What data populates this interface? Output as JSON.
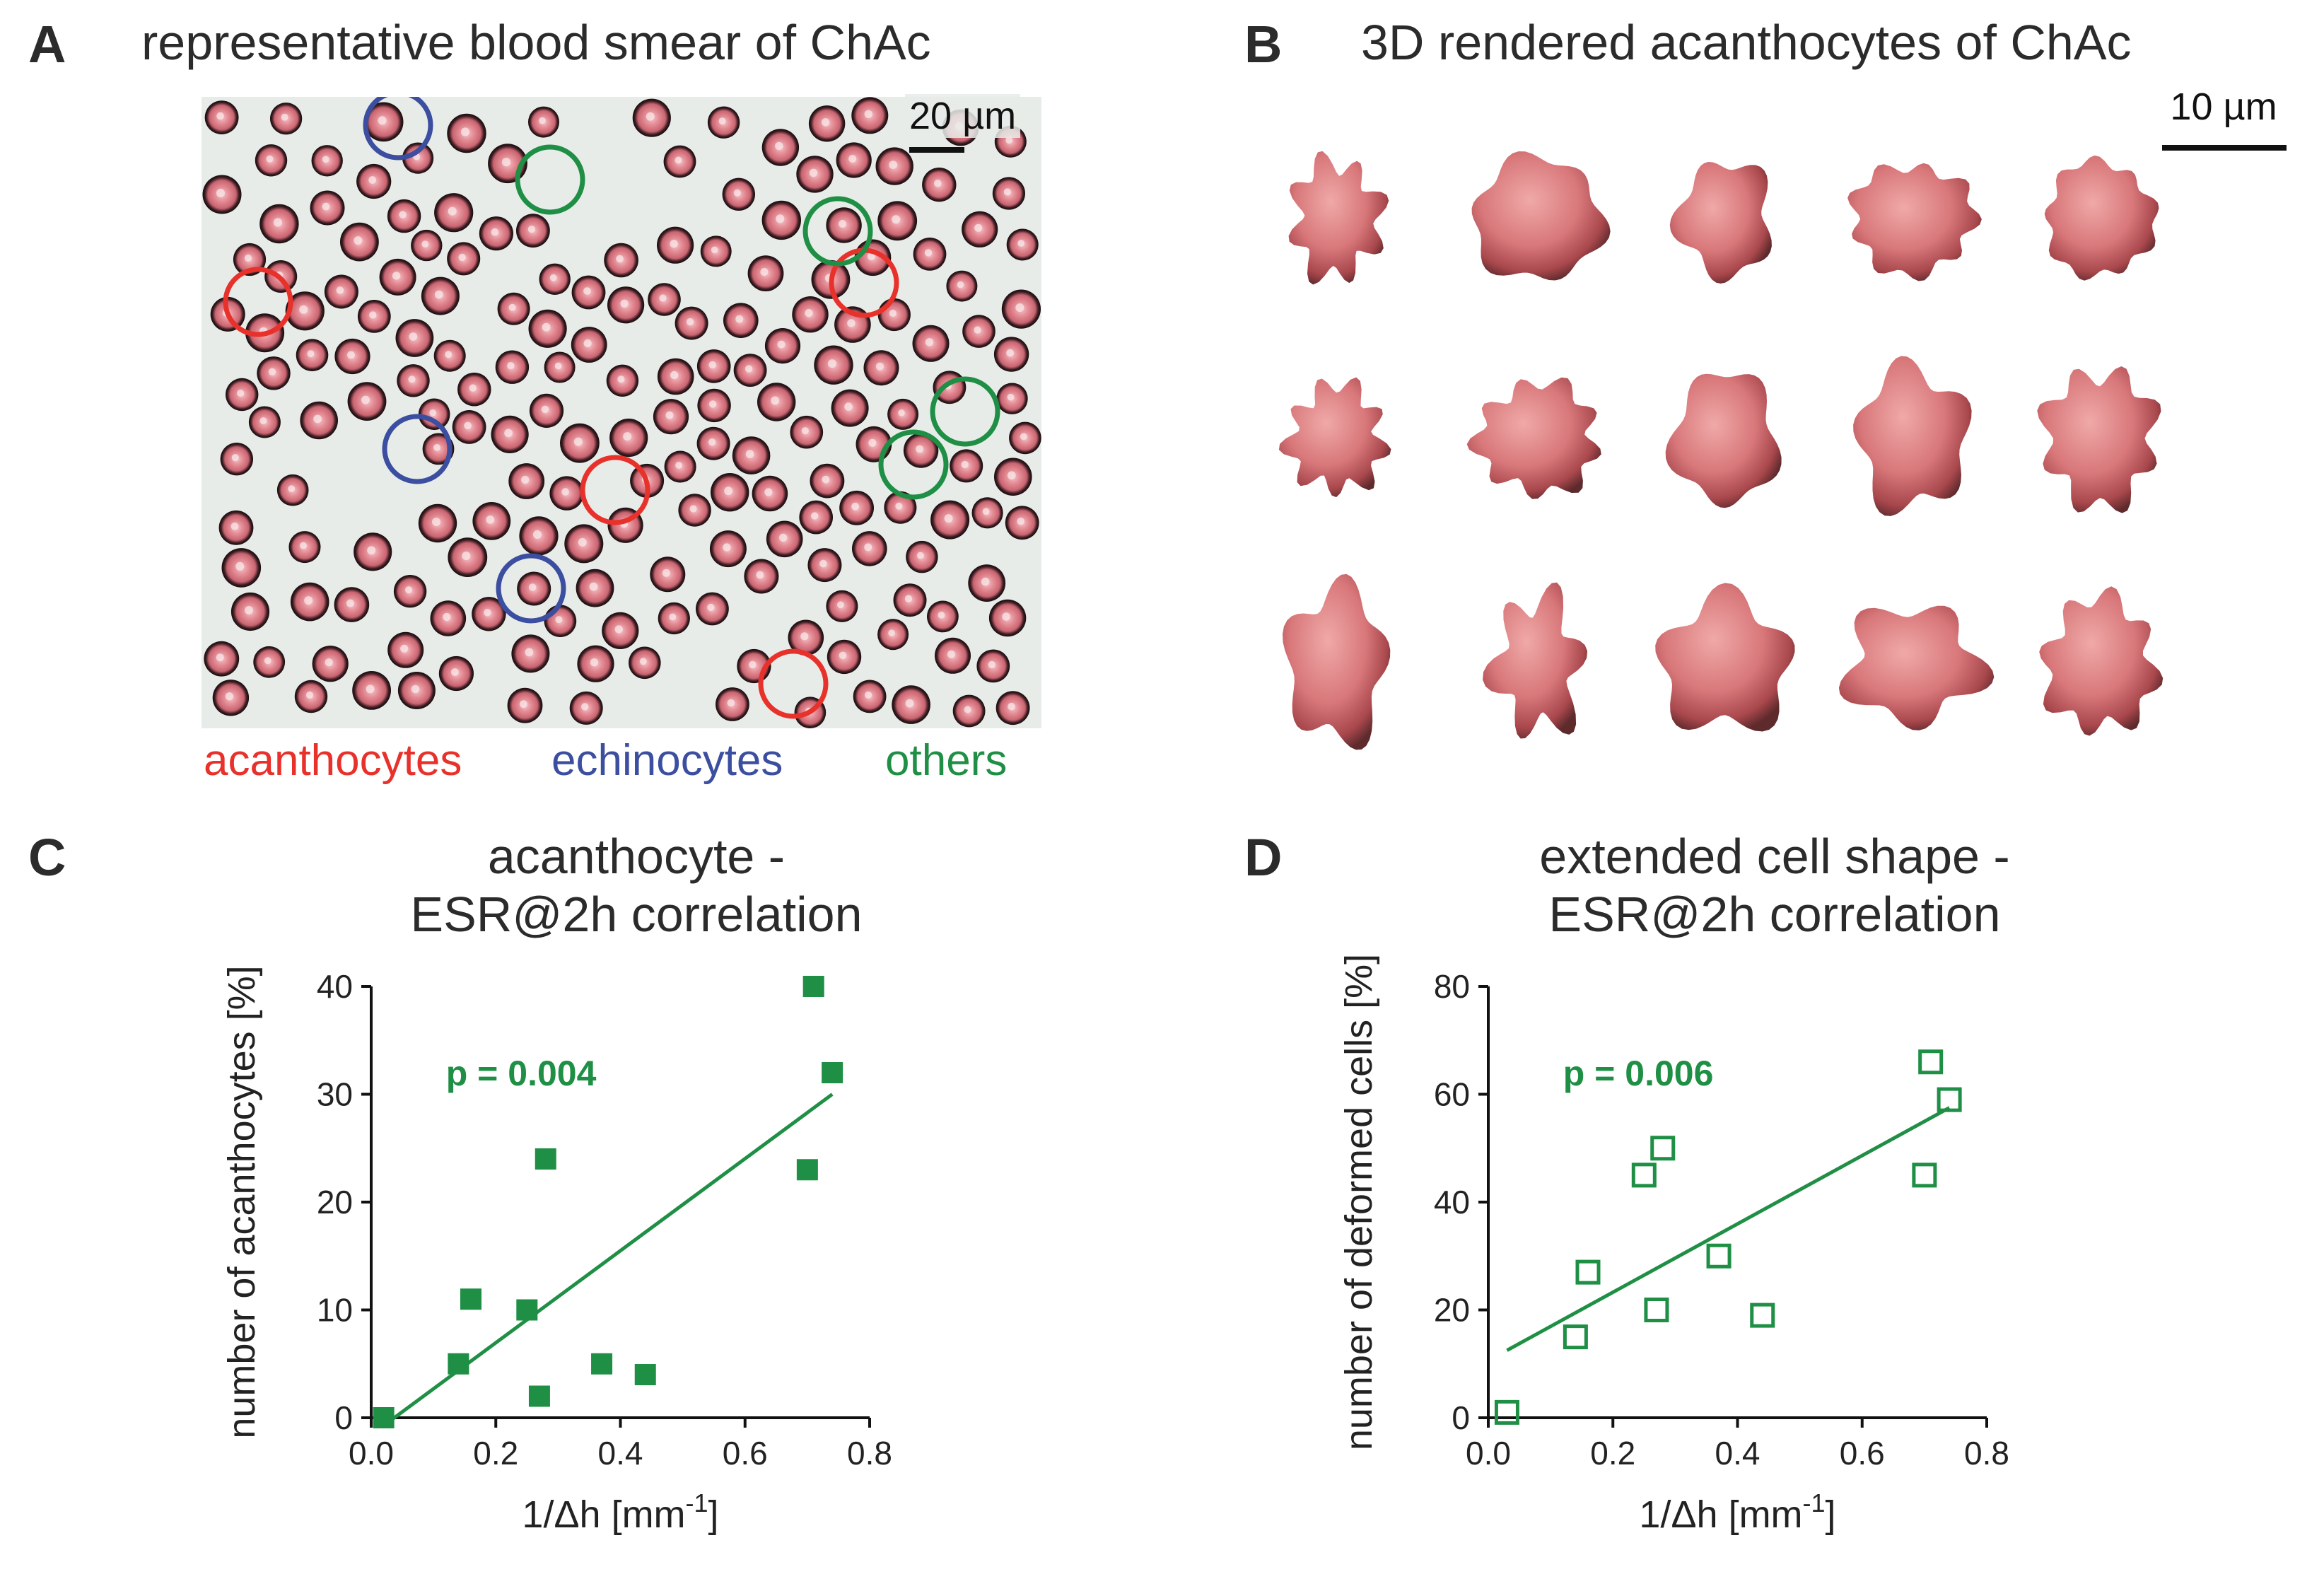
{
  "panels": {
    "A": {
      "label": "A",
      "title": "representative blood smear of ChAc",
      "scale_bar": "20 µm",
      "legend": [
        {
          "text": "acanthocytes",
          "color": "#e8312a"
        },
        {
          "text": "echinocytes",
          "color": "#3b4ea0"
        },
        {
          "text": "others",
          "color": "#1f8f45"
        }
      ]
    },
    "B": {
      "label": "B",
      "title": "3D rendered acanthocytes of ChAc",
      "scale_bar": "10 µm",
      "cell_color": "#d8777a"
    },
    "C": {
      "label": "C",
      "title_line1": "acanthocyte -",
      "title_line2": "ESR@2h correlation",
      "p_value": "p = 0.004"
    },
    "D": {
      "label": "D",
      "title_line1": "extended cell shape -",
      "title_line2": "ESR@2h correlation",
      "p_value": "p = 0.006"
    }
  },
  "colors": {
    "green": "#1f8f45",
    "acanthocytes": "#e8312a",
    "echinocytes": "#3b4ea0",
    "others": "#1f8f45"
  },
  "chart_data": [
    {
      "type": "scatter",
      "id": "C",
      "title": "acanthocyte - ESR@2h correlation",
      "xlabel": "1/Δh [mm-1]",
      "ylabel": "number of acanthocytes [%]",
      "xlim": [
        0.0,
        0.8
      ],
      "ylim": [
        0,
        40
      ],
      "xticks": [
        "0.0",
        "0.2",
        "0.4",
        "0.6",
        "0.8"
      ],
      "yticks": [
        "0",
        "10",
        "20",
        "30",
        "40"
      ],
      "marker": "filled-square",
      "points": [
        {
          "x": 0.02,
          "y": 0
        },
        {
          "x": 0.14,
          "y": 5
        },
        {
          "x": 0.16,
          "y": 11
        },
        {
          "x": 0.25,
          "y": 10
        },
        {
          "x": 0.27,
          "y": 2
        },
        {
          "x": 0.28,
          "y": 24
        },
        {
          "x": 0.37,
          "y": 5
        },
        {
          "x": 0.44,
          "y": 4
        },
        {
          "x": 0.7,
          "y": 23
        },
        {
          "x": 0.71,
          "y": 40
        },
        {
          "x": 0.74,
          "y": 32
        }
      ],
      "fit_line": [
        {
          "x": 0.03,
          "y": -0.3
        },
        {
          "x": 0.74,
          "y": 30
        }
      ],
      "annotation": "p = 0.004"
    },
    {
      "type": "scatter",
      "id": "D",
      "title": "extended cell shape - ESR@2h correlation",
      "xlabel": "1/Δh [mm-1]",
      "ylabel": "number of deformed cells [%]",
      "xlim": [
        0.0,
        0.8
      ],
      "ylim": [
        0,
        80
      ],
      "xticks": [
        "0.0",
        "0.2",
        "0.4",
        "0.6",
        "0.8"
      ],
      "yticks": [
        "0",
        "20",
        "40",
        "60",
        "80"
      ],
      "marker": "open-square",
      "points": [
        {
          "x": 0.03,
          "y": 1
        },
        {
          "x": 0.14,
          "y": 15
        },
        {
          "x": 0.16,
          "y": 27
        },
        {
          "x": 0.25,
          "y": 45
        },
        {
          "x": 0.27,
          "y": 20
        },
        {
          "x": 0.28,
          "y": 50
        },
        {
          "x": 0.37,
          "y": 30
        },
        {
          "x": 0.44,
          "y": 19
        },
        {
          "x": 0.7,
          "y": 45
        },
        {
          "x": 0.71,
          "y": 66
        },
        {
          "x": 0.74,
          "y": 59
        }
      ],
      "fit_line": [
        {
          "x": 0.03,
          "y": 12.5
        },
        {
          "x": 0.74,
          "y": 57.5
        }
      ],
      "annotation": "p = 0.006"
    }
  ]
}
